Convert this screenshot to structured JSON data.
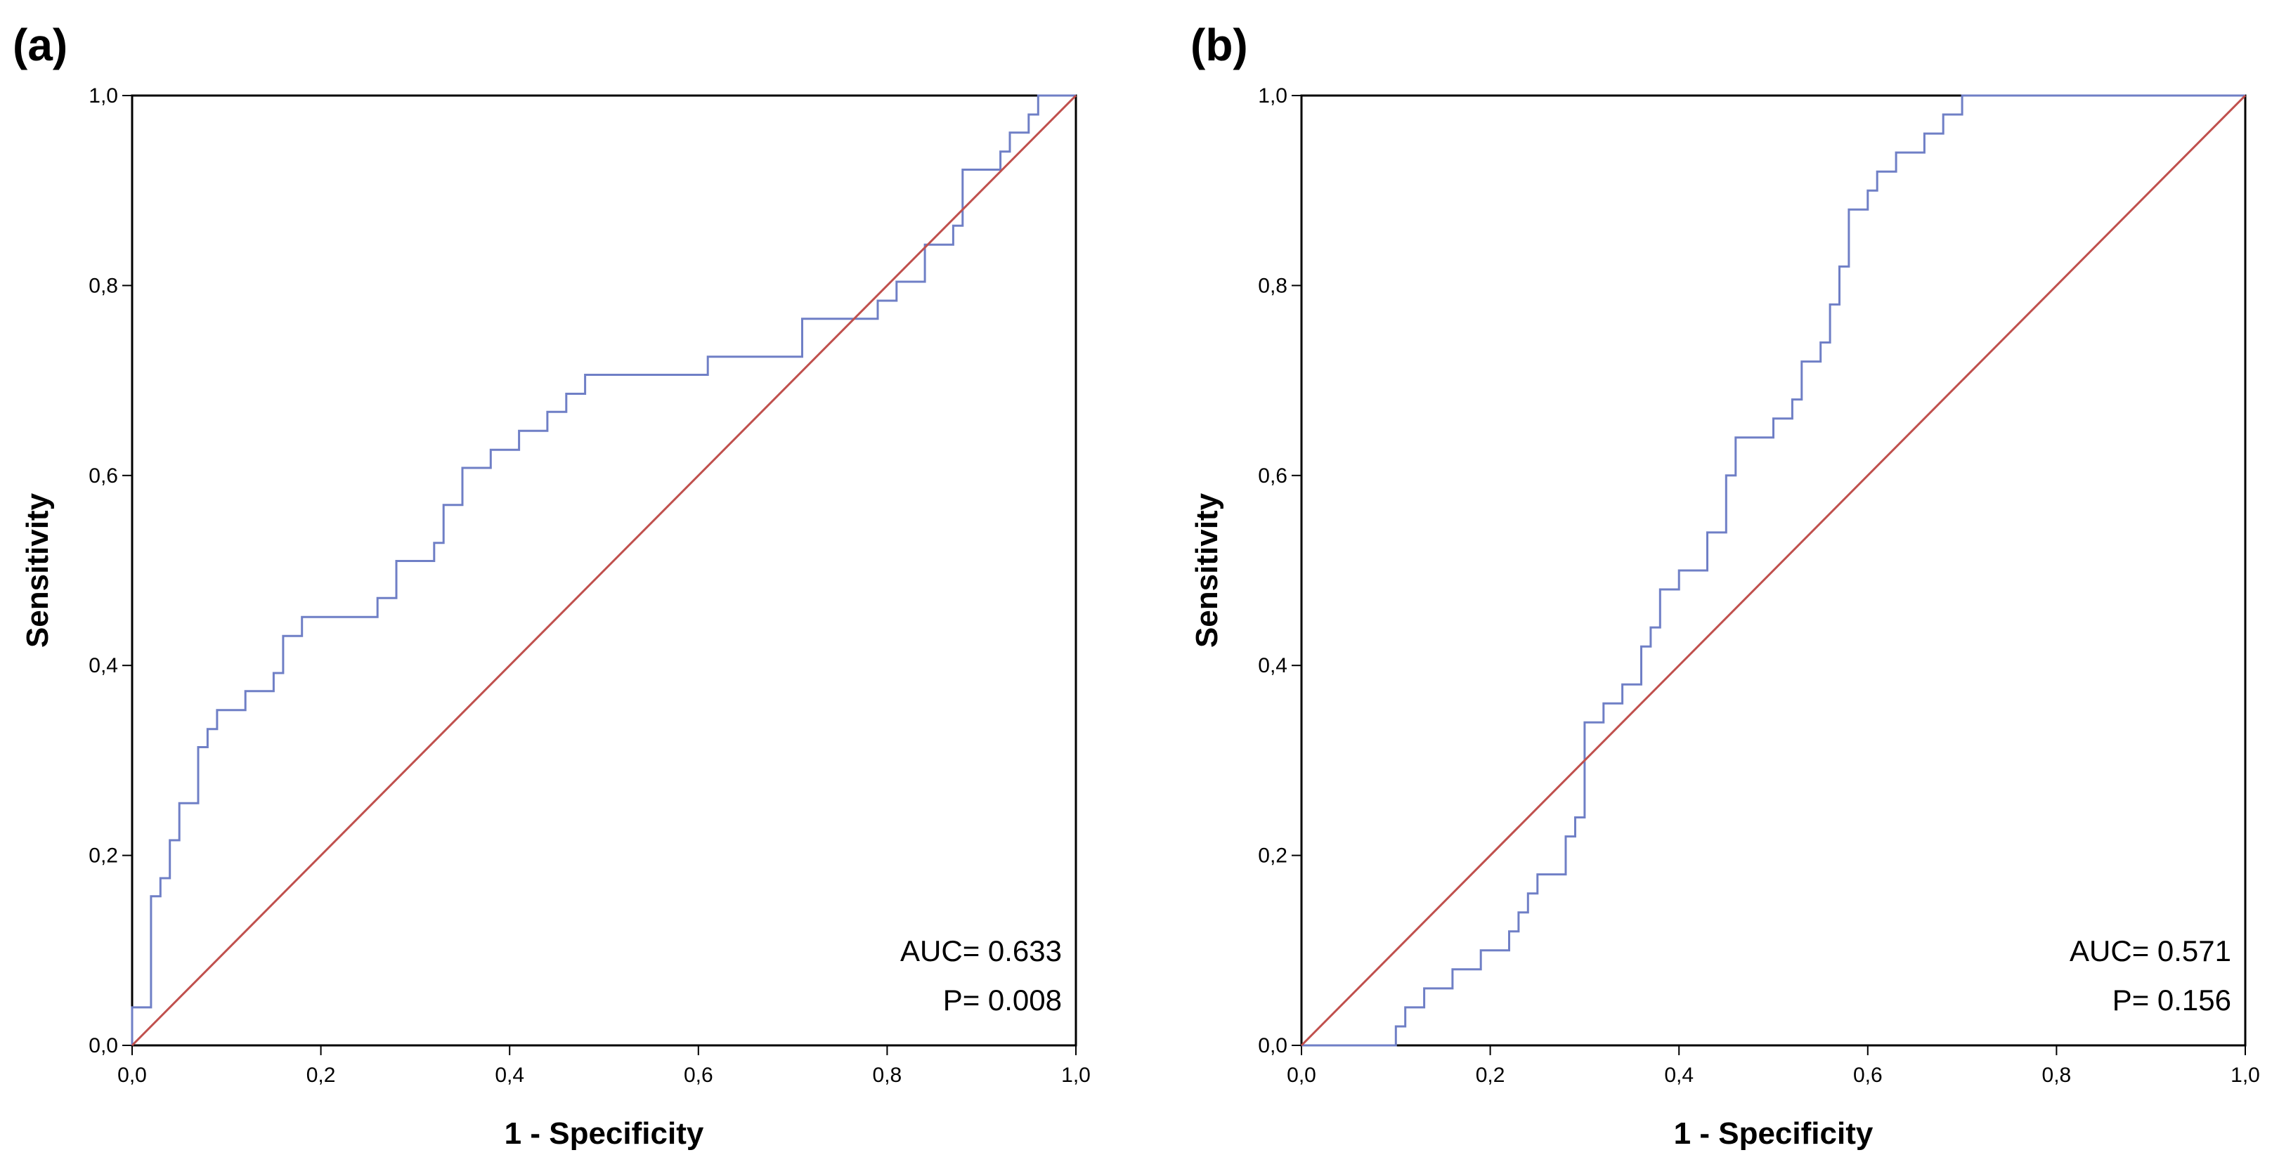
{
  "chart_data": [
    {
      "type": "line",
      "panel_label": "(a)",
      "xlabel": "1 - Specificity",
      "ylabel": "Sensitivity",
      "xlim": [
        0,
        1
      ],
      "ylim": [
        0,
        1
      ],
      "ticks": [
        "0,0",
        "0,2",
        "0,4",
        "0,6",
        "0,8",
        "1,0"
      ],
      "tick_values": [
        0,
        0.2,
        0.4,
        0.6,
        0.8,
        1.0
      ],
      "grid": false,
      "annotations": {
        "auc": "AUC= 0.633",
        "p": "P= 0.008"
      },
      "series": [
        {
          "name": "ROC curve",
          "color": "#6f7fc6",
          "step": true,
          "x": [
            0,
            0,
            0.02,
            0.02,
            0.03,
            0.03,
            0.04,
            0.04,
            0.05,
            0.05,
            0.07,
            0.07,
            0.08,
            0.08,
            0.09,
            0.09,
            0.12,
            0.12,
            0.15,
            0.15,
            0.16,
            0.16,
            0.18,
            0.18,
            0.26,
            0.26,
            0.28,
            0.28,
            0.32,
            0.32,
            0.33,
            0.33,
            0.35,
            0.35,
            0.38,
            0.38,
            0.41,
            0.41,
            0.44,
            0.44,
            0.46,
            0.46,
            0.48,
            0.48,
            0.61,
            0.61,
            0.71,
            0.71,
            0.79,
            0.79,
            0.81,
            0.81,
            0.84,
            0.84,
            0.87,
            0.87,
            0.88,
            0.88,
            0.92,
            0.92,
            0.93,
            0.93,
            0.95,
            0.95,
            0.96,
            0.96,
            0.97,
            0.97,
            1.0
          ],
          "y": [
            0,
            0.04,
            0.04,
            0.157,
            0.157,
            0.176,
            0.176,
            0.216,
            0.216,
            0.255,
            0.255,
            0.314,
            0.314,
            0.333,
            0.333,
            0.353,
            0.353,
            0.373,
            0.373,
            0.392,
            0.392,
            0.431,
            0.431,
            0.451,
            0.451,
            0.471,
            0.471,
            0.51,
            0.51,
            0.529,
            0.529,
            0.569,
            0.569,
            0.608,
            0.608,
            0.627,
            0.627,
            0.647,
            0.647,
            0.667,
            0.667,
            0.686,
            0.686,
            0.706,
            0.706,
            0.725,
            0.725,
            0.765,
            0.765,
            0.784,
            0.784,
            0.804,
            0.804,
            0.843,
            0.843,
            0.863,
            0.863,
            0.922,
            0.922,
            0.941,
            0.941,
            0.961,
            0.961,
            0.98,
            0.98,
            1.0,
            1.0,
            1.0,
            1.0
          ]
        },
        {
          "name": "Reference line",
          "color": "#c0504d",
          "x": [
            0,
            1
          ],
          "y": [
            0,
            1
          ]
        }
      ]
    },
    {
      "type": "line",
      "panel_label": "(b)",
      "xlabel": "1 - Specificity",
      "ylabel": "Sensitivity",
      "xlim": [
        0,
        1
      ],
      "ylim": [
        0,
        1
      ],
      "ticks": [
        "0,0",
        "0,2",
        "0,4",
        "0,6",
        "0,8",
        "1,0"
      ],
      "tick_values": [
        0,
        0.2,
        0.4,
        0.6,
        0.8,
        1.0
      ],
      "grid": false,
      "annotations": {
        "auc": "AUC= 0.571",
        "p": "P= 0.156"
      },
      "series": [
        {
          "name": "ROC curve",
          "color": "#6f7fc6",
          "step": true,
          "x": [
            0,
            0.1,
            0.1,
            0.11,
            0.11,
            0.13,
            0.13,
            0.16,
            0.16,
            0.19,
            0.19,
            0.22,
            0.22,
            0.23,
            0.23,
            0.24,
            0.24,
            0.25,
            0.25,
            0.28,
            0.28,
            0.29,
            0.29,
            0.3,
            0.3,
            0.32,
            0.32,
            0.34,
            0.34,
            0.36,
            0.36,
            0.37,
            0.37,
            0.38,
            0.38,
            0.4,
            0.4,
            0.43,
            0.43,
            0.45,
            0.45,
            0.46,
            0.46,
            0.5,
            0.5,
            0.52,
            0.52,
            0.53,
            0.53,
            0.55,
            0.55,
            0.56,
            0.56,
            0.57,
            0.57,
            0.58,
            0.58,
            0.6,
            0.6,
            0.61,
            0.61,
            0.63,
            0.63,
            0.66,
            0.66,
            0.68,
            0.68,
            0.7,
            0.7,
            0.72,
            0.72,
            0.73,
            0.73,
            1.0
          ],
          "y": [
            0,
            0,
            0.02,
            0.02,
            0.04,
            0.04,
            0.06,
            0.06,
            0.08,
            0.08,
            0.1,
            0.1,
            0.12,
            0.12,
            0.14,
            0.14,
            0.16,
            0.16,
            0.18,
            0.18,
            0.22,
            0.22,
            0.24,
            0.24,
            0.34,
            0.34,
            0.36,
            0.36,
            0.38,
            0.38,
            0.42,
            0.42,
            0.44,
            0.44,
            0.48,
            0.48,
            0.5,
            0.5,
            0.54,
            0.54,
            0.6,
            0.6,
            0.64,
            0.64,
            0.66,
            0.66,
            0.68,
            0.68,
            0.72,
            0.72,
            0.74,
            0.74,
            0.78,
            0.78,
            0.82,
            0.82,
            0.88,
            0.88,
            0.9,
            0.9,
            0.92,
            0.92,
            0.94,
            0.94,
            0.96,
            0.96,
            0.98,
            0.98,
            1.0,
            1.0,
            1.0,
            1.0,
            1.0,
            1.0
          ]
        },
        {
          "name": "Reference line",
          "color": "#c0504d",
          "x": [
            0,
            1
          ],
          "y": [
            0,
            1
          ]
        }
      ]
    }
  ],
  "colors": {
    "frame": "#000000",
    "roc": "#6f7fc6",
    "reference": "#c0504d"
  }
}
